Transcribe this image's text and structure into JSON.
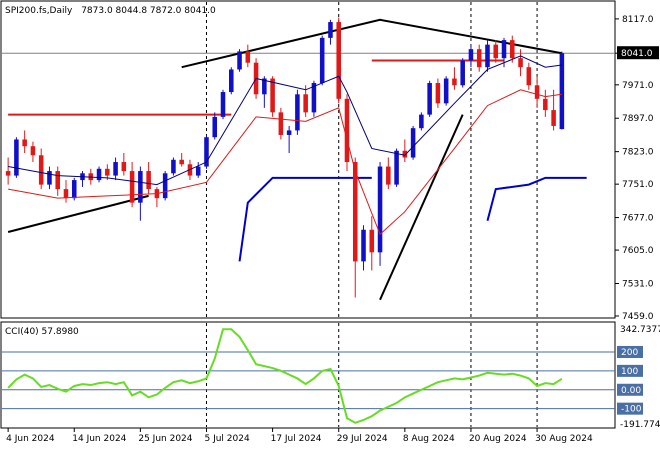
{
  "header": {
    "symbol": "SPI200.fs,Daily",
    "ohlc": "7873.0 8044.8 7872.0 8041.0"
  },
  "indicator": {
    "label": "CCI(40) 57.8980"
  },
  "colors": {
    "background": "#ffffff",
    "bull_candle": "#1010c8",
    "bear_candle": "#e01818",
    "sma_fast": "#000080",
    "sma_slow": "#e01818",
    "trendline": "#000000",
    "resistance": "#e01818",
    "support": "#0000cc",
    "cci_line": "#66dd22",
    "cci_levels": "#4a6fa5",
    "price_marker_bg": "#000000",
    "price_marker_text": "#ffffff"
  },
  "chart_data": [
    {
      "type": "candlestick",
      "title": "SPI200.fs,Daily",
      "ylim": [
        7459.0,
        8150.0
      ],
      "y_ticks": [
        "8117.0",
        "8041.0",
        "7971.0",
        "7897.0",
        "7823.0",
        "7751.0",
        "7677.0",
        "7605.0",
        "7531.0",
        "7459.0"
      ],
      "current_price": "8041.0",
      "x_ticks": [
        "4 Jun 2024",
        "14 Jun 2024",
        "25 Jun 2024",
        "5 Jul 2024",
        "17 Jul 2024",
        "29 Jul 2024",
        "8 Aug 2024",
        "20 Aug 2024",
        "30 Aug 2024"
      ],
      "x_tick_index": [
        0,
        8,
        16,
        24,
        32,
        40,
        48,
        56,
        64
      ],
      "dashed_dividers_index": [
        24,
        40,
        56,
        64
      ],
      "candles": [
        [
          7780,
          7810,
          7750,
          7770
        ],
        [
          7770,
          7855,
          7765,
          7850
        ],
        [
          7850,
          7870,
          7820,
          7835
        ],
        [
          7835,
          7845,
          7800,
          7815
        ],
        [
          7815,
          7830,
          7740,
          7750
        ],
        [
          7750,
          7790,
          7740,
          7780
        ],
        [
          7780,
          7790,
          7725,
          7740
        ],
        [
          7740,
          7760,
          7710,
          7720
        ],
        [
          7720,
          7765,
          7715,
          7760
        ],
        [
          7760,
          7780,
          7745,
          7775
        ],
        [
          7775,
          7785,
          7750,
          7760
        ],
        [
          7760,
          7790,
          7755,
          7785
        ],
        [
          7785,
          7795,
          7760,
          7770
        ],
        [
          7770,
          7810,
          7760,
          7800
        ],
        [
          7800,
          7820,
          7770,
          7780
        ],
        [
          7780,
          7800,
          7700,
          7710
        ],
        [
          7710,
          7790,
          7670,
          7780
        ],
        [
          7780,
          7800,
          7730,
          7740
        ],
        [
          7740,
          7745,
          7700,
          7720
        ],
        [
          7720,
          7780,
          7715,
          7775
        ],
        [
          7775,
          7810,
          7770,
          7805
        ],
        [
          7805,
          7820,
          7790,
          7795
        ],
        [
          7795,
          7805,
          7760,
          7770
        ],
        [
          7770,
          7800,
          7765,
          7790
        ],
        [
          7790,
          7860,
          7785,
          7855
        ],
        [
          7855,
          7910,
          7850,
          7900
        ],
        [
          7900,
          7960,
          7895,
          7955
        ],
        [
          7955,
          8010,
          7950,
          8005
        ],
        [
          8005,
          8050,
          8000,
          8045
        ],
        [
          8045,
          8060,
          8010,
          8020
        ],
        [
          8020,
          8030,
          7940,
          7950
        ],
        [
          7950,
          7990,
          7920,
          7985
        ],
        [
          7985,
          7990,
          7900,
          7910
        ],
        [
          7910,
          7920,
          7850,
          7860
        ],
        [
          7860,
          7880,
          7820,
          7870
        ],
        [
          7870,
          7960,
          7860,
          7950
        ],
        [
          7950,
          7970,
          7900,
          7910
        ],
        [
          7910,
          7980,
          7900,
          7975
        ],
        [
          7975,
          8080,
          7970,
          8075
        ],
        [
          8075,
          8115,
          8060,
          8110
        ],
        [
          8110,
          8120,
          7930,
          7940
        ],
        [
          7940,
          7950,
          7780,
          7800
        ],
        [
          7800,
          7810,
          7500,
          7580
        ],
        [
          7580,
          7660,
          7560,
          7650
        ],
        [
          7650,
          7680,
          7560,
          7600
        ],
        [
          7600,
          7800,
          7570,
          7790
        ],
        [
          7790,
          7810,
          7740,
          7750
        ],
        [
          7750,
          7830,
          7745,
          7825
        ],
        [
          7825,
          7850,
          7800,
          7810
        ],
        [
          7810,
          7880,
          7805,
          7875
        ],
        [
          7875,
          7910,
          7870,
          7905
        ],
        [
          7905,
          7980,
          7900,
          7975
        ],
        [
          7975,
          7985,
          7920,
          7930
        ],
        [
          7930,
          7990,
          7925,
          7985
        ],
        [
          7985,
          8010,
          7960,
          7970
        ],
        [
          7970,
          8030,
          7965,
          8025
        ],
        [
          8025,
          8060,
          8010,
          8050
        ],
        [
          8050,
          8060,
          8000,
          8010
        ],
        [
          8010,
          8070,
          8000,
          8060
        ],
        [
          8060,
          8070,
          8020,
          8030
        ],
        [
          8030,
          8075,
          8010,
          8070
        ],
        [
          8070,
          8080,
          8020,
          8030
        ],
        [
          8030,
          8050,
          7990,
          8010
        ],
        [
          8010,
          8020,
          7960,
          7970
        ],
        [
          7970,
          7990,
          7920,
          7940
        ],
        [
          7940,
          7960,
          7900,
          7915
        ],
        [
          7915,
          7960,
          7870,
          7880
        ],
        [
          7873.0,
          8044.8,
          7872.0,
          8041.0
        ]
      ],
      "sma_fast": [
        [
          0,
          7790
        ],
        [
          6,
          7770
        ],
        [
          12,
          7765
        ],
        [
          18,
          7750
        ],
        [
          24,
          7800
        ],
        [
          30,
          7985
        ],
        [
          36,
          7960
        ],
        [
          40,
          7990
        ],
        [
          41,
          7955
        ],
        [
          44,
          7830
        ],
        [
          48,
          7815
        ],
        [
          54,
          7930
        ],
        [
          58,
          8005
        ],
        [
          62,
          8035
        ],
        [
          65,
          8010
        ],
        [
          67,
          8015
        ]
      ],
      "sma_slow": [
        [
          0,
          7740
        ],
        [
          6,
          7720
        ],
        [
          12,
          7725
        ],
        [
          18,
          7730
        ],
        [
          24,
          7755
        ],
        [
          30,
          7900
        ],
        [
          36,
          7890
        ],
        [
          40,
          7920
        ],
        [
          42,
          7780
        ],
        [
          45,
          7640
        ],
        [
          48,
          7690
        ],
        [
          54,
          7830
        ],
        [
          58,
          7925
        ],
        [
          62,
          7960
        ],
        [
          65,
          7945
        ],
        [
          67,
          7950
        ]
      ],
      "trendlines": [
        [
          [
            0,
            7645
          ],
          [
            17,
            7725
          ]
        ],
        [
          [
            21,
            8010
          ],
          [
            45,
            8115
          ],
          [
            67,
            8041
          ]
        ],
        [
          [
            45,
            7495
          ],
          [
            55,
            7905
          ]
        ]
      ],
      "resistance_lines": [
        [
          [
            0,
            7905
          ],
          [
            27,
            7905
          ]
        ],
        [
          [
            44,
            8025
          ],
          [
            60,
            8025
          ]
        ]
      ],
      "support_segments": [
        [
          [
            28,
            7580
          ],
          [
            29,
            7710
          ],
          [
            32,
            7765
          ],
          [
            44,
            7765
          ]
        ],
        [
          [
            58,
            7670
          ],
          [
            59,
            7740
          ],
          [
            63,
            7750
          ],
          [
            65,
            7765
          ],
          [
            70,
            7765
          ]
        ]
      ]
    },
    {
      "type": "line",
      "title": "CCI(40) 57.8980",
      "ylim": [
        -191.7746,
        342.7377
      ],
      "y_ticks": [
        "342.7377",
        "200",
        "100",
        "0.00",
        "-100",
        "-191.7746"
      ],
      "levels": [
        200,
        100,
        0,
        -100
      ],
      "series": [
        {
          "name": "CCI(40)",
          "values": [
            10,
            55,
            80,
            60,
            15,
            25,
            5,
            -10,
            20,
            30,
            25,
            35,
            40,
            30,
            40,
            -30,
            -10,
            -40,
            -25,
            10,
            40,
            50,
            35,
            45,
            60,
            165,
            320,
            320,
            280,
            210,
            135,
            125,
            115,
            100,
            80,
            60,
            30,
            60,
            100,
            110,
            20,
            -150,
            -175,
            -160,
            -140,
            -110,
            -90,
            -70,
            -40,
            -20,
            0,
            20,
            40,
            50,
            60,
            55,
            65,
            75,
            90,
            85,
            80,
            85,
            75,
            60,
            20,
            35,
            30,
            57.898
          ]
        }
      ]
    }
  ]
}
